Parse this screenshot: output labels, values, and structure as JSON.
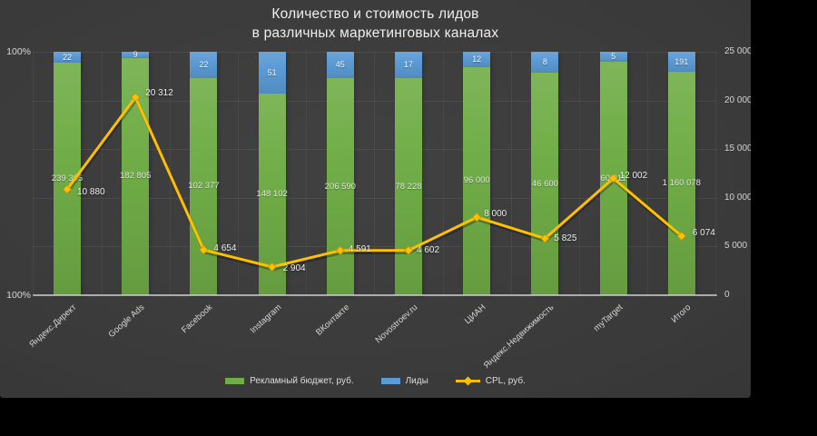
{
  "title": {
    "line1": "Количество и стоимость лидов",
    "line2": "в различных маркетинговых каналах"
  },
  "colors": {
    "budget_green": "#70AD47",
    "leads_blue": "#5B9BD5",
    "cpl_yellow": "#FFC000",
    "slide_bg": "#3A3A3A",
    "page_bg": "#000000",
    "text_light": "#EFEFEF"
  },
  "chart_data": {
    "type": "bar",
    "subtype": "100%-stacked-columns-with-line",
    "title": "Количество и стоимость лидов в различных маркетинговых каналах",
    "categories": [
      "Яндекс.Директ",
      "Google Ads",
      "Facebook",
      "Instagram",
      "ВКонтакте",
      "Novostroev.ru",
      "ЦИАН",
      "Яндекс.Недвижимость",
      "myTarget",
      "Итого"
    ],
    "series": [
      {
        "name": "Рекламный бюджет, руб.",
        "type": "bar",
        "color": "#70AD47",
        "values": [
          239365,
          182805,
          102377,
          148102,
          206590,
          78228,
          96000,
          46600,
          60011,
          1160078
        ],
        "labels": [
          "239 365",
          "182 805",
          "102 377",
          "148 102",
          "206 590",
          "78 228",
          "96 000",
          "46 600",
          "60 011",
          "1 160 078"
        ]
      },
      {
        "name": "Лиды",
        "type": "bar",
        "color": "#5B9BD5",
        "values": [
          22,
          9,
          22,
          51,
          45,
          17,
          12,
          8,
          5,
          191
        ],
        "labels": [
          "22",
          "9",
          "22",
          "51",
          "45",
          "17",
          "12",
          "8",
          "5",
          "191"
        ]
      },
      {
        "name": "CPL, руб.",
        "type": "line",
        "color": "#FFC000",
        "values": [
          10880,
          20312,
          4654,
          2904,
          4591,
          4602,
          8000,
          5825,
          12002,
          6074
        ],
        "labels": [
          "10 880",
          "20 312",
          "4 654",
          "2 904",
          "4 591",
          "4 602",
          "8 000",
          "5 825",
          "12 002",
          "6 074"
        ]
      }
    ],
    "left_axis": {
      "top_label": "100%",
      "bottom_label": "100%"
    },
    "right_axis": {
      "min": 0,
      "max": 25000,
      "ticks": [
        {
          "v": 0,
          "label": "0"
        },
        {
          "v": 5000,
          "label": "5 000"
        },
        {
          "v": 10000,
          "label": "10 000"
        },
        {
          "v": 15000,
          "label": "15 000"
        },
        {
          "v": 20000,
          "label": "20 000"
        },
        {
          "v": 25000,
          "label": "25 000"
        }
      ]
    },
    "leads_stack_scale": 500,
    "legend_position": "bottom",
    "grid": true
  }
}
